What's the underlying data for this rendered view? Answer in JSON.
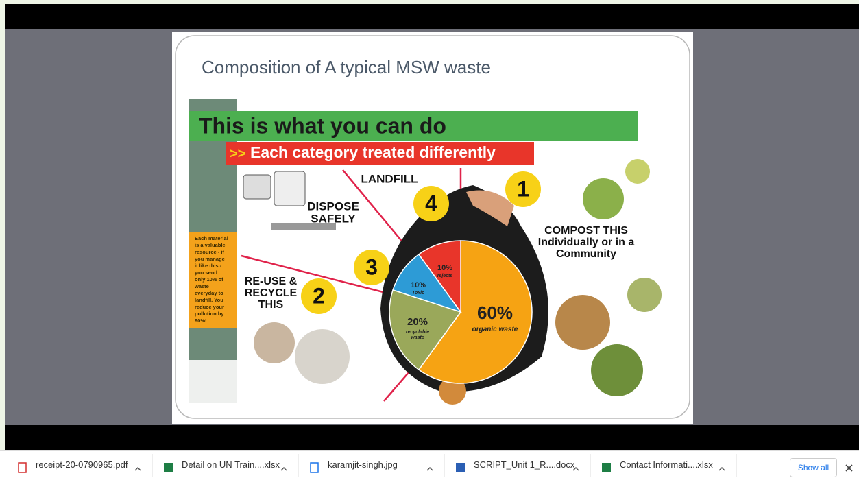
{
  "slide": {
    "title": "Composition of A typical MSW waste",
    "banner": "This is what you can do",
    "subbanner_marker": ">>",
    "subbanner": "Each category treated differently",
    "side_note": [
      "Each material",
      "is a valuable",
      "resource - if",
      "you manage",
      "it like this -",
      "you send",
      "only 10% of",
      "waste",
      "everyday to",
      "landfill. You",
      "reduce your",
      "pollution by",
      "90%!"
    ],
    "steps": [
      {
        "number": "1",
        "text": [
          "COMPOST THIS",
          "Individually or in a",
          "Community"
        ]
      },
      {
        "number": "2",
        "text": [
          "RE-USE &",
          "RECYCLE",
          "THIS"
        ]
      },
      {
        "number": "3",
        "text": [
          "DISPOSE",
          "SAFELY"
        ]
      },
      {
        "number": "4",
        "text": [
          "LANDFILL"
        ]
      }
    ],
    "pie": [
      {
        "value": 60,
        "label": "60%",
        "caption": [
          "organic waste"
        ],
        "color": "#f6a313"
      },
      {
        "value": 20,
        "label": "20%",
        "caption": [
          "recyclable",
          "waste"
        ],
        "color": "#9aa85a"
      },
      {
        "value": 10,
        "label": "10%",
        "caption": [
          "Toxic"
        ],
        "color": "#2d9bd6"
      },
      {
        "value": 10,
        "label": "10%",
        "caption": [
          "rejects"
        ],
        "color": "#e8352a"
      }
    ]
  },
  "downloads": {
    "items": [
      "receipt-20-0790965.pdf",
      "Detail on UN Train....xlsx",
      "karamjit-singh.jpg",
      "SCRIPT_Unit 1_R....docx",
      "Contact Informati....xlsx"
    ],
    "show_all": "Show all"
  }
}
